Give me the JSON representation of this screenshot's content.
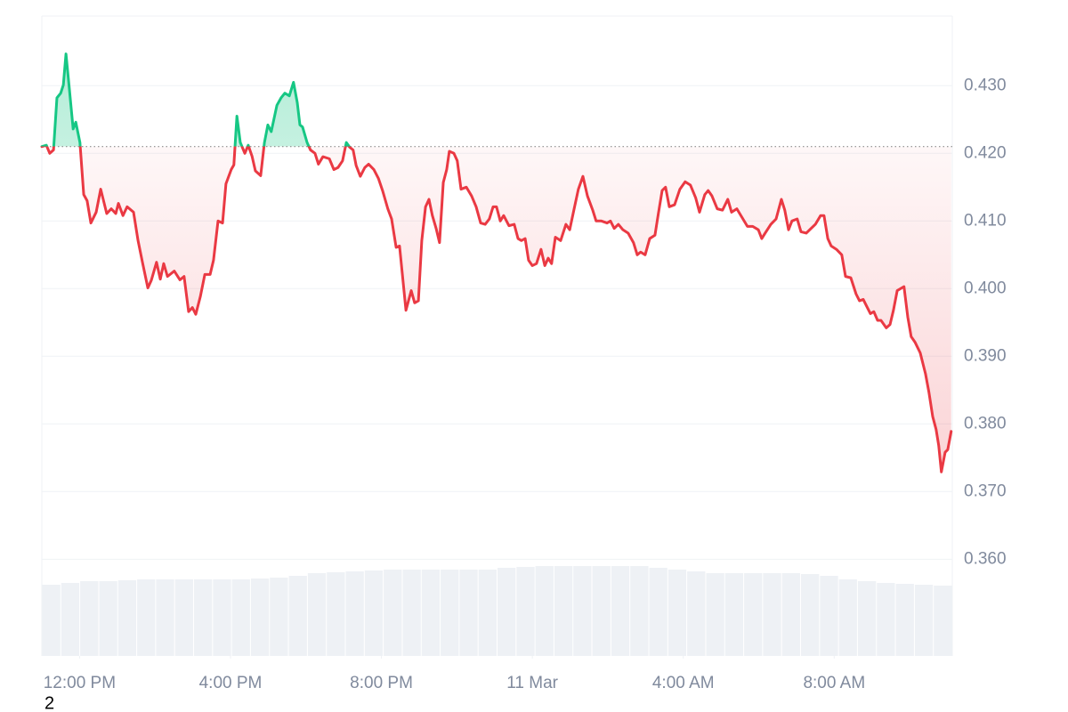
{
  "chart_data": {
    "type": "line",
    "page_label": "2",
    "baseline": 0.421,
    "color_up": "#16c784",
    "color_down": "#ea3943",
    "xlim": [
      11,
      35.13
    ],
    "ylim": [
      0.3457,
      0.4403
    ],
    "xticks": [
      {
        "value": 12,
        "label": "12:00 PM"
      },
      {
        "value": 16,
        "label": "4:00 PM"
      },
      {
        "value": 20,
        "label": "8:00 PM"
      },
      {
        "value": 24,
        "label": "11 Mar"
      },
      {
        "value": 28,
        "label": "4:00 AM"
      },
      {
        "value": 32,
        "label": "8:00 AM"
      }
    ],
    "yticks": [
      {
        "value": 0.36,
        "label": "0.360"
      },
      {
        "value": 0.37,
        "label": "0.370"
      },
      {
        "value": 0.38,
        "label": "0.380"
      },
      {
        "value": 0.39,
        "label": "0.390"
      },
      {
        "value": 0.4,
        "label": "0.400"
      },
      {
        "value": 0.41,
        "label": "0.410"
      },
      {
        "value": 0.42,
        "label": "0.420"
      },
      {
        "value": 0.43,
        "label": "0.430"
      }
    ],
    "grid": true,
    "x": [
      11.0,
      11.12,
      11.21,
      11.31,
      11.4,
      11.5,
      11.57,
      11.64,
      11.73,
      11.83,
      11.9,
      12.01,
      12.11,
      12.2,
      12.3,
      12.44,
      12.56,
      12.72,
      12.84,
      12.96,
      13.03,
      13.15,
      13.26,
      13.43,
      13.55,
      13.67,
      13.81,
      13.9,
      14.04,
      14.14,
      14.23,
      14.33,
      14.51,
      14.66,
      14.77,
      14.89,
      14.99,
      15.08,
      15.2,
      15.32,
      15.46,
      15.55,
      15.67,
      15.79,
      15.88,
      16.02,
      16.09,
      16.17,
      16.26,
      16.38,
      16.47,
      16.57,
      16.66,
      16.8,
      16.9,
      16.99,
      17.08,
      17.23,
      17.34,
      17.44,
      17.56,
      17.67,
      17.77,
      17.84,
      17.91,
      18.03,
      18.12,
      18.24,
      18.33,
      18.45,
      18.62,
      18.74,
      18.85,
      18.97,
      19.07,
      19.16,
      19.25,
      19.33,
      19.44,
      19.56,
      19.66,
      19.8,
      19.92,
      20.03,
      20.17,
      20.27,
      20.39,
      20.48,
      20.65,
      20.79,
      20.88,
      20.98,
      21.07,
      21.17,
      21.26,
      21.35,
      21.45,
      21.54,
      21.64,
      21.73,
      21.8,
      21.92,
      22.01,
      22.11,
      22.25,
      22.39,
      22.51,
      22.63,
      22.75,
      22.86,
      22.96,
      23.05,
      23.15,
      23.24,
      23.38,
      23.52,
      23.62,
      23.71,
      23.81,
      23.9,
      24.0,
      24.11,
      24.23,
      24.33,
      24.42,
      24.51,
      24.61,
      24.75,
      24.89,
      24.99,
      25.1,
      25.22,
      25.34,
      25.46,
      25.6,
      25.69,
      25.83,
      25.98,
      26.07,
      26.17,
      26.28,
      26.4,
      26.54,
      26.68,
      26.78,
      26.87,
      26.99,
      27.11,
      27.25,
      27.34,
      27.44,
      27.53,
      27.63,
      27.77,
      27.91,
      28.05,
      28.19,
      28.33,
      28.43,
      28.57,
      28.66,
      28.76,
      28.9,
      29.04,
      29.18,
      29.28,
      29.42,
      29.56,
      29.7,
      29.84,
      29.99,
      30.08,
      30.17,
      30.32,
      30.46,
      30.6,
      30.69,
      30.79,
      30.88,
      31.02,
      31.12,
      31.26,
      31.35,
      31.5,
      31.64,
      31.73,
      31.83,
      31.92,
      32.06,
      32.2,
      32.3,
      32.44,
      32.58,
      32.67,
      32.77,
      32.86,
      32.96,
      33.05,
      33.15,
      33.24,
      33.38,
      33.48,
      33.57,
      33.67,
      33.85,
      33.95,
      34.04,
      34.14,
      34.28,
      34.42,
      34.51,
      34.61,
      34.7,
      34.77,
      34.84,
      34.94,
      35.01,
      35.1
    ],
    "values": [
      0.421,
      0.4212,
      0.42,
      0.4205,
      0.4282,
      0.4289,
      0.4301,
      0.4347,
      0.4295,
      0.4236,
      0.4246,
      0.4216,
      0.4139,
      0.413,
      0.4097,
      0.4113,
      0.4147,
      0.4111,
      0.4118,
      0.4111,
      0.4126,
      0.4108,
      0.4121,
      0.4113,
      0.4071,
      0.4038,
      0.4001,
      0.4012,
      0.4039,
      0.4014,
      0.4037,
      0.4018,
      0.4026,
      0.4013,
      0.4018,
      0.3966,
      0.3972,
      0.3962,
      0.3988,
      0.4021,
      0.4021,
      0.4042,
      0.41,
      0.4097,
      0.4155,
      0.4176,
      0.4183,
      0.4255,
      0.4216,
      0.42,
      0.4212,
      0.4196,
      0.4174,
      0.4167,
      0.4216,
      0.4242,
      0.4232,
      0.4271,
      0.4282,
      0.4289,
      0.4285,
      0.4305,
      0.4275,
      0.4242,
      0.4239,
      0.4216,
      0.4205,
      0.42,
      0.4184,
      0.4195,
      0.4192,
      0.4176,
      0.4179,
      0.4189,
      0.4216,
      0.4209,
      0.4205,
      0.4182,
      0.4166,
      0.4179,
      0.4184,
      0.4176,
      0.4163,
      0.4145,
      0.4118,
      0.4103,
      0.4061,
      0.4063,
      0.3968,
      0.3997,
      0.3979,
      0.3982,
      0.4071,
      0.4121,
      0.4132,
      0.4108,
      0.4089,
      0.4068,
      0.4157,
      0.4176,
      0.4203,
      0.42,
      0.4189,
      0.4147,
      0.415,
      0.4137,
      0.4121,
      0.4097,
      0.4095,
      0.4103,
      0.4121,
      0.4121,
      0.41,
      0.4108,
      0.4093,
      0.4095,
      0.4074,
      0.4071,
      0.4074,
      0.4042,
      0.4034,
      0.4037,
      0.4058,
      0.4034,
      0.4045,
      0.4037,
      0.4076,
      0.4071,
      0.4095,
      0.4087,
      0.4116,
      0.4147,
      0.4166,
      0.4137,
      0.4116,
      0.41,
      0.41,
      0.4097,
      0.41,
      0.4089,
      0.4095,
      0.4087,
      0.4082,
      0.4068,
      0.405,
      0.4054,
      0.405,
      0.4074,
      0.4079,
      0.4111,
      0.4145,
      0.415,
      0.4121,
      0.4124,
      0.4147,
      0.4158,
      0.4153,
      0.4134,
      0.4113,
      0.4139,
      0.4145,
      0.4137,
      0.4118,
      0.4116,
      0.4132,
      0.4113,
      0.4118,
      0.4105,
      0.4092,
      0.4092,
      0.4087,
      0.4074,
      0.4082,
      0.4095,
      0.4103,
      0.4132,
      0.4116,
      0.4087,
      0.41,
      0.4103,
      0.4084,
      0.4082,
      0.4087,
      0.4095,
      0.4108,
      0.4108,
      0.4074,
      0.4063,
      0.4058,
      0.405,
      0.4018,
      0.4016,
      0.3992,
      0.3982,
      0.3984,
      0.3974,
      0.3963,
      0.3966,
      0.3953,
      0.3953,
      0.3942,
      0.3947,
      0.3968,
      0.3997,
      0.4003,
      0.3958,
      0.3929,
      0.3921,
      0.3905,
      0.3874,
      0.3847,
      0.3811,
      0.3792,
      0.3768,
      0.3729,
      0.3758,
      0.3762,
      0.3789
    ],
    "volume": {
      "color": "#eef1f5",
      "values": [
        80,
        82,
        84,
        84,
        85,
        86,
        86,
        86,
        86,
        86,
        86,
        87,
        88,
        90,
        93,
        94,
        95,
        96,
        97,
        97,
        97,
        97,
        97,
        97,
        99,
        100,
        101,
        101,
        101,
        101,
        101,
        101,
        99,
        97,
        95,
        93,
        93,
        93,
        93,
        93,
        92,
        90,
        86,
        84,
        82,
        81,
        80,
        79
      ]
    }
  }
}
